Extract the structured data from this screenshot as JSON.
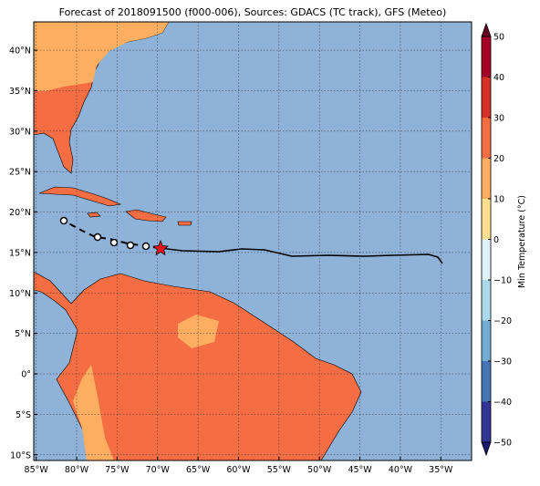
{
  "map": {
    "title": "Forecast of 2018091500 (f000-006), Sources: GDACS (TC track), GFS (Meteo)",
    "lonlim": [
      -85.3,
      -31.2
    ],
    "latlim": [
      -10.7,
      43.5
    ],
    "lon_ticks": [
      {
        "value": -85,
        "label": "85°W"
      },
      {
        "value": -80,
        "label": "80°W"
      },
      {
        "value": -75,
        "label": "75°W"
      },
      {
        "value": -70,
        "label": "70°W"
      },
      {
        "value": -65,
        "label": "65°W"
      },
      {
        "value": -60,
        "label": "60°W"
      },
      {
        "value": -55,
        "label": "55°W"
      },
      {
        "value": -50,
        "label": "50°W"
      },
      {
        "value": -45,
        "label": "45°W"
      },
      {
        "value": -40,
        "label": "40°W"
      },
      {
        "value": -35,
        "label": "35°W"
      }
    ],
    "lat_ticks": [
      {
        "value": -10,
        "label": "10°S"
      },
      {
        "value": -5,
        "label": "5°S"
      },
      {
        "value": 0,
        "label": "0°"
      },
      {
        "value": 5,
        "label": "5°N"
      },
      {
        "value": 10,
        "label": "10°N"
      },
      {
        "value": 15,
        "label": "15°N"
      },
      {
        "value": 20,
        "label": "20°N"
      },
      {
        "value": 25,
        "label": "25°N"
      },
      {
        "value": 30,
        "label": "30°N"
      },
      {
        "value": 35,
        "label": "35°N"
      },
      {
        "value": 40,
        "label": "40°N"
      }
    ]
  },
  "colorbar": {
    "label": "Min Temperature (°C)",
    "lim": [
      -50,
      50
    ],
    "ticks": [
      {
        "value": -50,
        "label": "−50"
      },
      {
        "value": -40,
        "label": "−40"
      },
      {
        "value": -30,
        "label": "−30"
      },
      {
        "value": -20,
        "label": "−20"
      },
      {
        "value": -10,
        "label": "−10"
      },
      0,
      10,
      20,
      30,
      40,
      50
    ],
    "colors": [
      "#313695",
      "#4575b4",
      "#74add1",
      "#abd9e9",
      "#e0f3f8",
      "#fee090",
      "#fdae61",
      "#f46d43",
      "#d73027",
      "#a50026"
    ],
    "under_color": "#1a1a70",
    "over_color": "#67001f"
  }
}
